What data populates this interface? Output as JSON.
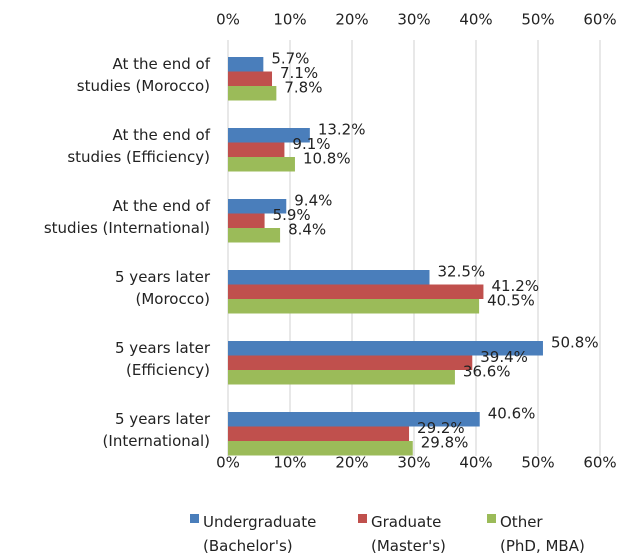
{
  "chart_data": {
    "type": "hbar",
    "categories": [
      [
        "At the end of",
        "studies (Morocco)"
      ],
      [
        "At the end of",
        "studies (Efficiency)"
      ],
      [
        "At the end of",
        "studies (International)"
      ],
      [
        "5 years later",
        "(Morocco)"
      ],
      [
        "5 years later",
        "(Efficiency)"
      ],
      [
        "5 years later",
        "(International)"
      ]
    ],
    "series": [
      {
        "name": [
          "Undergraduate",
          "(Bachelor's)"
        ],
        "color": "#4a7ebb",
        "values": [
          5.7,
          13.2,
          9.4,
          32.5,
          50.8,
          40.6
        ],
        "value_labels": [
          "5.7%",
          "13.2%",
          "9.4%",
          "32.5%",
          "50.8%",
          "40.6%"
        ]
      },
      {
        "name": [
          "Graduate",
          "(Master's)"
        ],
        "color": "#c0504d",
        "values": [
          7.1,
          9.1,
          5.9,
          41.2,
          39.4,
          29.2
        ],
        "value_labels": [
          "7.1%",
          "9.1%",
          "5.9%",
          "41.2%",
          "39.4%",
          "29.2%"
        ]
      },
      {
        "name": [
          "Other",
          "(PhD, MBA)"
        ],
        "color": "#9bbb59",
        "values": [
          7.8,
          10.8,
          8.4,
          40.5,
          36.6,
          29.8
        ],
        "value_labels": [
          "7.8%",
          "10.8%",
          "8.4%",
          "40.5%",
          "36.6%",
          "29.8%"
        ]
      }
    ],
    "xlim": [
      0,
      60
    ],
    "xticks": [
      {
        "value": 0,
        "label": "0%"
      },
      {
        "value": 10,
        "label": "10%"
      },
      {
        "value": 20,
        "label": "20%"
      },
      {
        "value": 30,
        "label": "30%"
      },
      {
        "value": 40,
        "label": "40%"
      },
      {
        "value": 50,
        "label": "50%"
      },
      {
        "value": 60,
        "label": "60%"
      }
    ],
    "grid": true,
    "legend": "bottom"
  }
}
